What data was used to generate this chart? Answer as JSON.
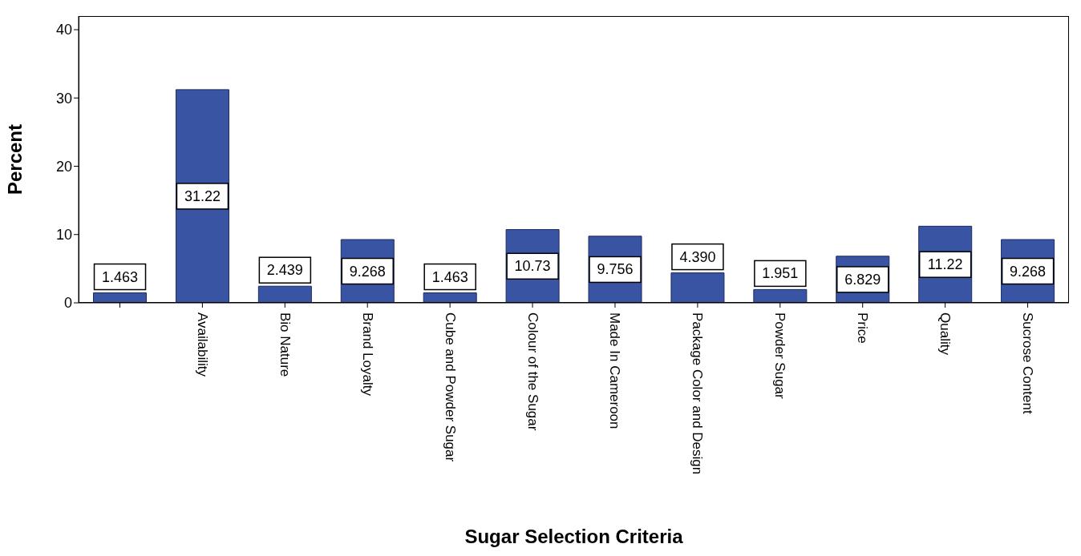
{
  "chart_data": {
    "type": "bar",
    "xlabel": "Sugar Selection Criteria",
    "ylabel": "Percent",
    "categories": [
      null,
      "Availability",
      "Bio Nature",
      "Brand Loyalty",
      "Cube and Powder Sugar",
      "Colour of the Sugar",
      "Made In Cameroon",
      "Package Color and Design",
      "Powder Sugar",
      "Price",
      "Quality",
      "Sucrose Content"
    ],
    "values": [
      1.463,
      31.22,
      2.439,
      9.268,
      1.463,
      10.73,
      9.756,
      4.39,
      1.951,
      6.829,
      11.22,
      9.268
    ],
    "value_labels": [
      "1.463",
      "31.22",
      "2.439",
      "9.268",
      "1.463",
      "10.73",
      "9.756",
      "4.390",
      "1.951",
      "6.829",
      "11.22",
      "9.268"
    ],
    "color": "#3a54a4",
    "ylim": [
      0,
      42
    ],
    "yticks": [
      0,
      10,
      20,
      30,
      40
    ],
    "grid": false,
    "legend": false
  }
}
